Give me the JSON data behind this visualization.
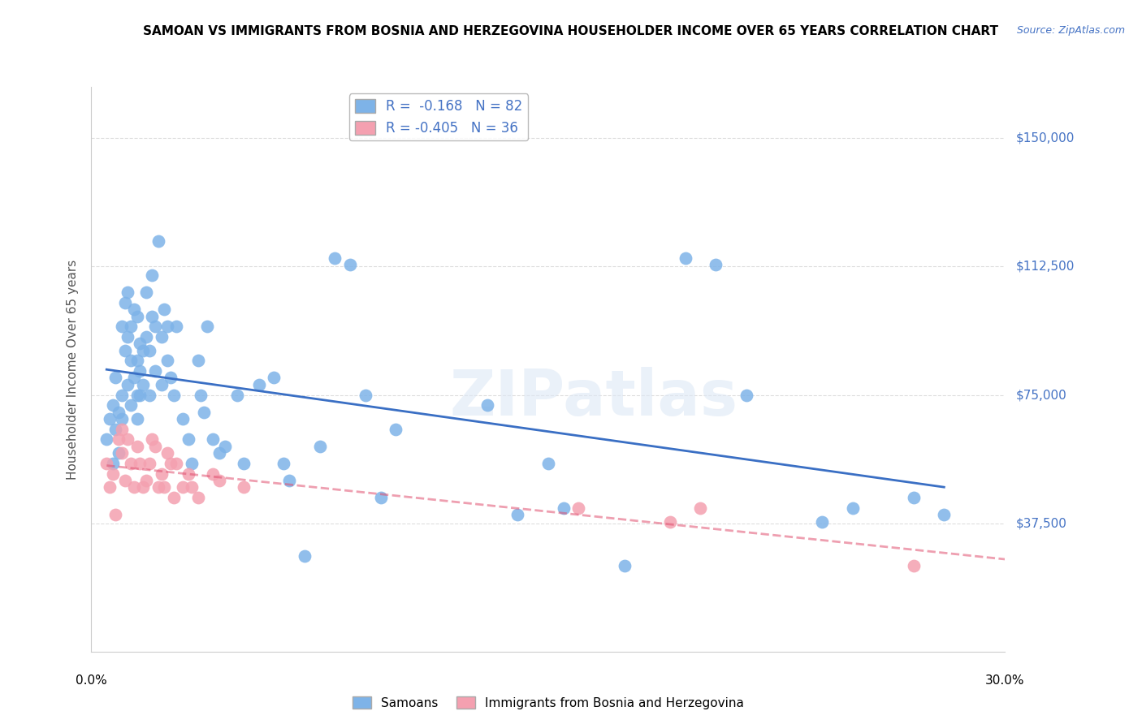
{
  "title": "SAMOAN VS IMMIGRANTS FROM BOSNIA AND HERZEGOVINA HOUSEHOLDER INCOME OVER 65 YEARS CORRELATION CHART",
  "source": "Source: ZipAtlas.com",
  "ylabel": "Householder Income Over 65 years",
  "y_ticks": [
    37500,
    75000,
    112500,
    150000
  ],
  "y_tick_labels": [
    "$37,500",
    "$75,000",
    "$112,500",
    "$150,000"
  ],
  "x_range": [
    0.0,
    0.3
  ],
  "y_range": [
    0,
    165000
  ],
  "legend_labels": [
    "Samoans",
    "Immigrants from Bosnia and Herzegovina"
  ],
  "blue_R": "-0.168",
  "blue_N": "82",
  "pink_R": "-0.405",
  "pink_N": "36",
  "blue_color": "#7EB3E8",
  "pink_color": "#F4A0B0",
  "blue_line_color": "#3A6FC4",
  "pink_line_color": "#E05070",
  "watermark": "ZIPatlas",
  "blue_points_x": [
    0.005,
    0.006,
    0.007,
    0.007,
    0.008,
    0.008,
    0.009,
    0.009,
    0.01,
    0.01,
    0.01,
    0.011,
    0.011,
    0.012,
    0.012,
    0.012,
    0.013,
    0.013,
    0.013,
    0.014,
    0.014,
    0.015,
    0.015,
    0.015,
    0.015,
    0.016,
    0.016,
    0.016,
    0.017,
    0.017,
    0.018,
    0.018,
    0.019,
    0.019,
    0.02,
    0.02,
    0.021,
    0.021,
    0.022,
    0.023,
    0.023,
    0.024,
    0.025,
    0.025,
    0.026,
    0.027,
    0.028,
    0.03,
    0.032,
    0.033,
    0.035,
    0.036,
    0.037,
    0.038,
    0.04,
    0.042,
    0.044,
    0.048,
    0.05,
    0.055,
    0.06,
    0.063,
    0.065,
    0.07,
    0.075,
    0.08,
    0.085,
    0.09,
    0.095,
    0.1,
    0.13,
    0.14,
    0.15,
    0.155,
    0.175,
    0.195,
    0.205,
    0.215,
    0.24,
    0.25,
    0.27,
    0.28
  ],
  "blue_points_y": [
    62000,
    68000,
    72000,
    55000,
    80000,
    65000,
    70000,
    58000,
    75000,
    68000,
    95000,
    102000,
    88000,
    78000,
    92000,
    105000,
    85000,
    72000,
    95000,
    100000,
    80000,
    98000,
    85000,
    75000,
    68000,
    90000,
    82000,
    75000,
    78000,
    88000,
    105000,
    92000,
    88000,
    75000,
    110000,
    98000,
    95000,
    82000,
    120000,
    92000,
    78000,
    100000,
    95000,
    85000,
    80000,
    75000,
    95000,
    68000,
    62000,
    55000,
    85000,
    75000,
    70000,
    95000,
    62000,
    58000,
    60000,
    75000,
    55000,
    78000,
    80000,
    55000,
    50000,
    28000,
    60000,
    115000,
    113000,
    75000,
    45000,
    65000,
    72000,
    40000,
    55000,
    42000,
    25000,
    115000,
    113000,
    75000,
    38000,
    42000,
    45000,
    40000
  ],
  "pink_points_x": [
    0.005,
    0.006,
    0.007,
    0.008,
    0.009,
    0.01,
    0.01,
    0.011,
    0.012,
    0.013,
    0.014,
    0.015,
    0.016,
    0.017,
    0.018,
    0.019,
    0.02,
    0.021,
    0.022,
    0.023,
    0.024,
    0.025,
    0.026,
    0.027,
    0.028,
    0.03,
    0.032,
    0.033,
    0.035,
    0.04,
    0.042,
    0.05,
    0.16,
    0.19,
    0.2,
    0.27
  ],
  "pink_points_y": [
    55000,
    48000,
    52000,
    40000,
    62000,
    58000,
    65000,
    50000,
    62000,
    55000,
    48000,
    60000,
    55000,
    48000,
    50000,
    55000,
    62000,
    60000,
    48000,
    52000,
    48000,
    58000,
    55000,
    45000,
    55000,
    48000,
    52000,
    48000,
    45000,
    52000,
    50000,
    48000,
    42000,
    38000,
    42000,
    25000
  ]
}
